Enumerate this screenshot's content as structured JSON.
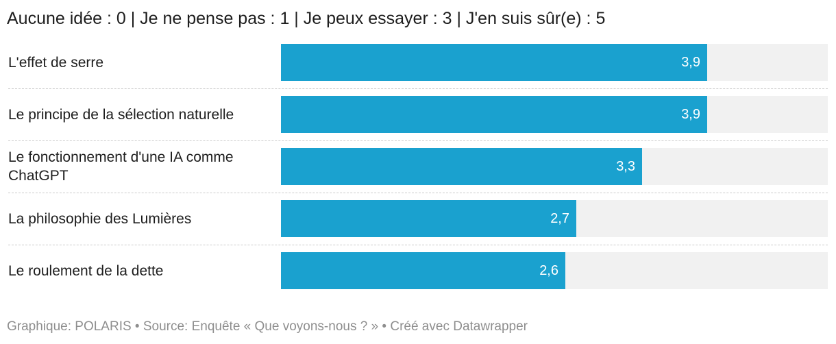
{
  "legend": "Aucune idée : 0 | Je ne pense pas : 1 | Je peux essayer : 3 | J'en suis sûr(e) : 5",
  "colors": {
    "bar": "#1aa1cf",
    "track": "#f1f1f1",
    "value_text": "#ffffff"
  },
  "chart_data": {
    "type": "bar",
    "orientation": "horizontal",
    "categories": [
      "L'effet de serre",
      "Le principe de la sélection naturelle",
      "Le fonctionnement d'une IA comme ChatGPT",
      "La philosophie des Lumières",
      "Le roulement de la dette"
    ],
    "values": [
      3.9,
      3.9,
      3.3,
      2.7,
      2.6
    ],
    "value_labels": [
      "3,9",
      "3,9",
      "3,3",
      "2,7",
      "2,6"
    ],
    "xlim": [
      0,
      5
    ],
    "grid": false,
    "legend": "top"
  },
  "footer": "Graphique: POLARIS • Source: Enquête « Que voyons-nous ? » • Créé avec Datawrapper"
}
